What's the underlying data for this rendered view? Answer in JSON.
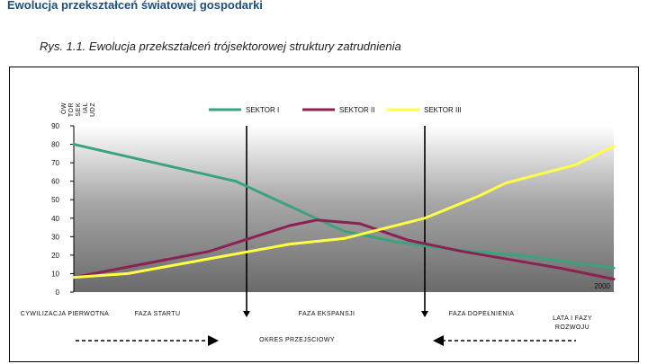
{
  "page_title": "Ewolucja przekształceń światowej gospodarki",
  "figure_caption": "Rys. 1.1. Ewolucja przekształceń trójsektorowej struktury zatrudnienia",
  "y_axis_label_columns": [
    "UDZ",
    "IAŁ",
    "SEK",
    "TOR",
    "ÓW"
  ],
  "chart_data": {
    "type": "line",
    "title": "",
    "ylabel": "UDZIAŁ SEKTORÓW",
    "xlabel": "LATA I FAZY ROZWOJU",
    "ylim": [
      0,
      90
    ],
    "yticks": [
      0,
      10,
      20,
      30,
      40,
      50,
      60,
      70,
      80,
      90
    ],
    "x_unit_range": [
      0,
      100
    ],
    "legend_position": "top-center",
    "grid": false,
    "end_label": "2000",
    "phases": [
      {
        "label": "CYWILIZACJA PIERWOTNA"
      },
      {
        "label": "FAZA STARTU"
      },
      {
        "label": "FAZA EKSPANSJI"
      },
      {
        "label": "FAZA DOPEŁNIENIA"
      }
    ],
    "phase_boundaries": [
      32,
      65
    ],
    "bottom_label": "OKRES PRZEJŚCIOWY",
    "series": [
      {
        "name": "SEKTOR I",
        "color": "#3aa37c",
        "points": [
          [
            0,
            80
          ],
          [
            30,
            60
          ],
          [
            50,
            33
          ],
          [
            60,
            27
          ],
          [
            70,
            23
          ],
          [
            82,
            20
          ],
          [
            100,
            13
          ]
        ]
      },
      {
        "name": "SEKTOR II",
        "color": "#8b2252",
        "points": [
          [
            0,
            8
          ],
          [
            25,
            22
          ],
          [
            40,
            36
          ],
          [
            45,
            39
          ],
          [
            53,
            37
          ],
          [
            62,
            28
          ],
          [
            72,
            22
          ],
          [
            90,
            13
          ],
          [
            100,
            7
          ]
        ]
      },
      {
        "name": "SEKTOR III",
        "color": "#ffff44",
        "points": [
          [
            0,
            8
          ],
          [
            10,
            10
          ],
          [
            25,
            18
          ],
          [
            40,
            26
          ],
          [
            50,
            29
          ],
          [
            65,
            40
          ],
          [
            75,
            52
          ],
          [
            80,
            59
          ],
          [
            93,
            69
          ],
          [
            100,
            79
          ]
        ]
      }
    ]
  }
}
